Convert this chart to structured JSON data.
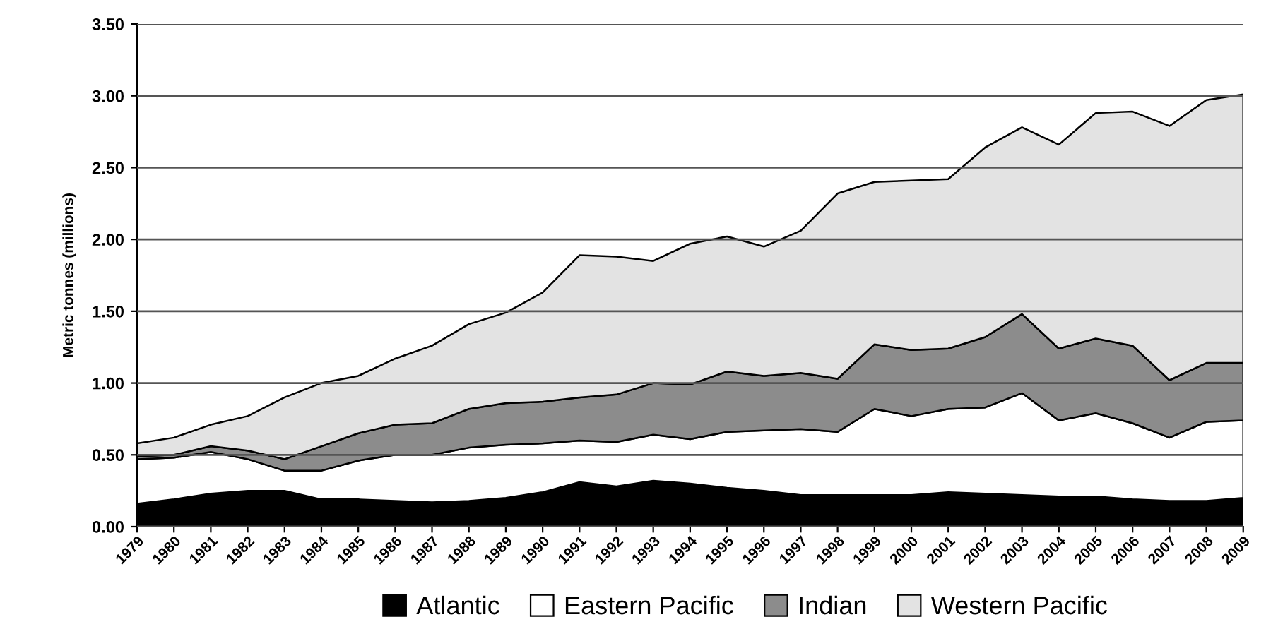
{
  "chart_data": {
    "type": "area",
    "stacked": true,
    "ylabel": "Metric tonnes (millions)",
    "categories": [
      "1979",
      "1980",
      "1981",
      "1982",
      "1983",
      "1984",
      "1985",
      "1986",
      "1987",
      "1988",
      "1989",
      "1990",
      "1991",
      "1992",
      "1993",
      "1994",
      "1995",
      "1996",
      "1997",
      "1998",
      "1999",
      "2000",
      "2001",
      "2002",
      "2003",
      "2004",
      "2005",
      "2006",
      "2007",
      "2008",
      "2009"
    ],
    "series": [
      {
        "name": "Atlantic",
        "color": "#000000",
        "values": [
          0.16,
          0.19,
          0.23,
          0.25,
          0.25,
          0.19,
          0.19,
          0.18,
          0.17,
          0.18,
          0.2,
          0.24,
          0.31,
          0.28,
          0.32,
          0.3,
          0.27,
          0.25,
          0.22,
          0.22,
          0.22,
          0.22,
          0.24,
          0.23,
          0.22,
          0.21,
          0.21,
          0.19,
          0.18,
          0.18,
          0.2
        ]
      },
      {
        "name": "Eastern Pacific",
        "color": "#ffffff",
        "values": [
          0.31,
          0.29,
          0.29,
          0.22,
          0.14,
          0.2,
          0.27,
          0.32,
          0.33,
          0.37,
          0.37,
          0.34,
          0.29,
          0.31,
          0.32,
          0.31,
          0.39,
          0.42,
          0.46,
          0.44,
          0.6,
          0.55,
          0.58,
          0.6,
          0.71,
          0.53,
          0.58,
          0.53,
          0.44,
          0.55,
          0.54
        ]
      },
      {
        "name": "Indian",
        "color": "#8c8c8c",
        "values": [
          0.02,
          0.02,
          0.04,
          0.06,
          0.08,
          0.17,
          0.19,
          0.21,
          0.22,
          0.27,
          0.29,
          0.29,
          0.3,
          0.33,
          0.36,
          0.38,
          0.42,
          0.38,
          0.39,
          0.37,
          0.45,
          0.46,
          0.42,
          0.49,
          0.55,
          0.5,
          0.52,
          0.54,
          0.4,
          0.41,
          0.4
        ]
      },
      {
        "name": "Western Pacific",
        "color": "#e3e3e3",
        "values": [
          0.09,
          0.12,
          0.15,
          0.24,
          0.43,
          0.44,
          0.4,
          0.46,
          0.54,
          0.59,
          0.63,
          0.76,
          0.99,
          0.96,
          0.85,
          0.98,
          0.94,
          0.9,
          0.99,
          1.29,
          1.13,
          1.18,
          1.18,
          1.32,
          1.3,
          1.42,
          1.57,
          1.63,
          1.77,
          1.83,
          1.87
        ]
      }
    ],
    "ylim": [
      0,
      3.5
    ],
    "yticks": [
      {
        "value": 0,
        "label": "0.00"
      },
      {
        "value": 0.5,
        "label": "0.50"
      },
      {
        "value": 1,
        "label": "1.00"
      },
      {
        "value": 1.5,
        "label": "1.50"
      },
      {
        "value": 2,
        "label": "2.00"
      },
      {
        "value": 2.5,
        "label": "2.50"
      },
      {
        "value": 3,
        "label": "3.00"
      },
      {
        "value": 3.5,
        "label": "3.50"
      }
    ],
    "grid": "y",
    "legend": "bottom"
  }
}
